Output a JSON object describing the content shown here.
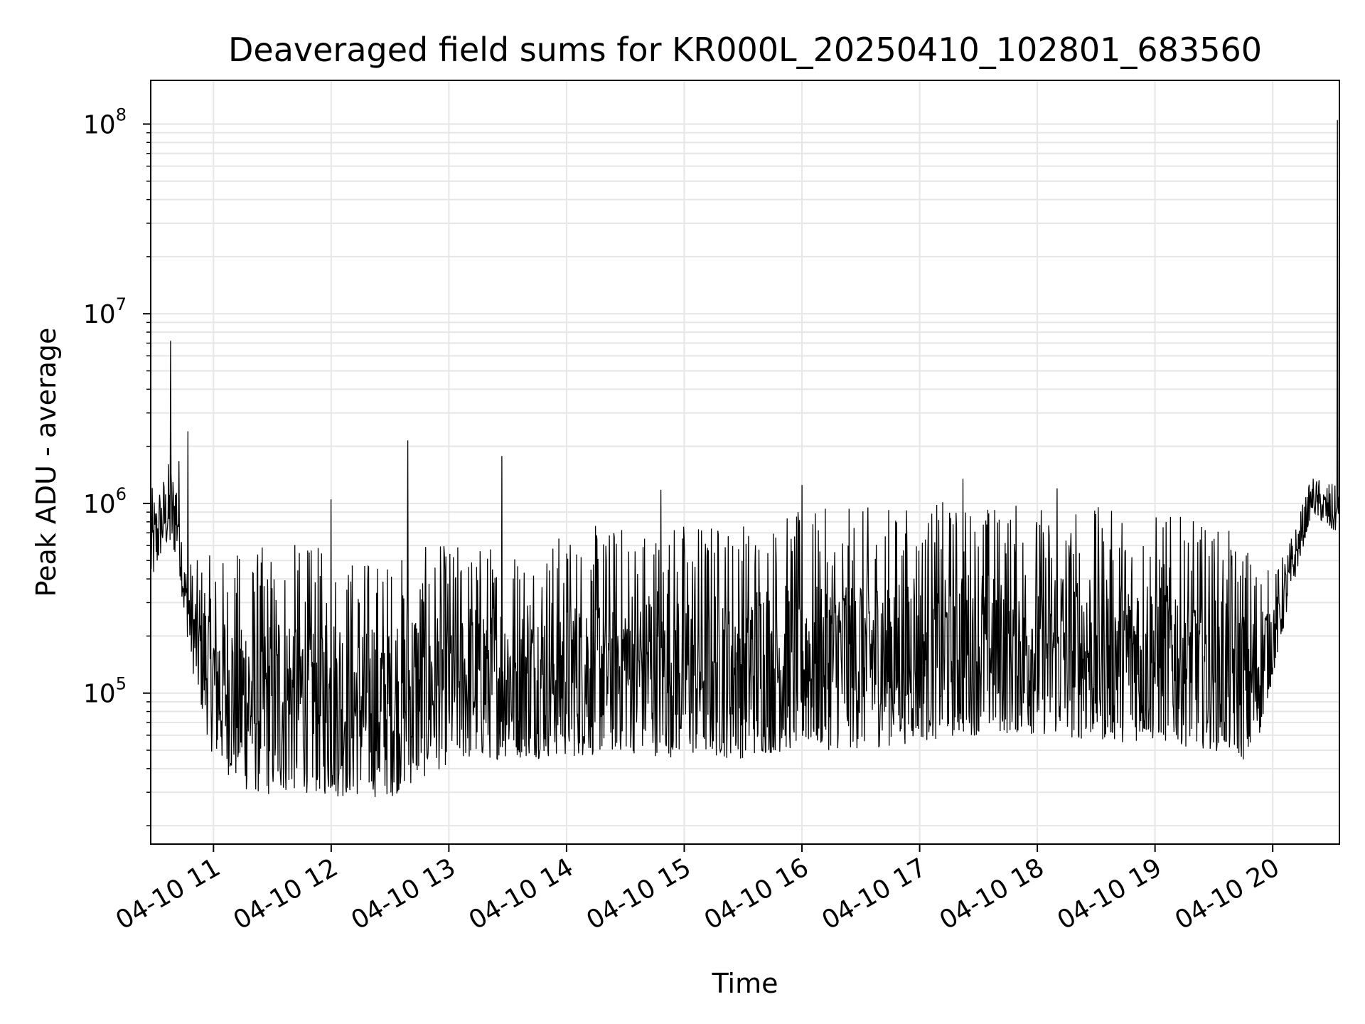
{
  "chart_data": {
    "type": "line",
    "title": "Deaveraged field sums for KR000L_20250410_102801_683560",
    "xlabel": "Time",
    "ylabel": "Peak ADU - average",
    "yscale": "log",
    "ylim": [
      16000,
      170000000
    ],
    "xlim": [
      "2025-04-10 10:28",
      "2025-04-10 20:34"
    ],
    "grid": true,
    "line_color": "#000000",
    "grid_color": "#e6e6e6",
    "x_ticks": [
      {
        "time": "2025-04-10 11:00",
        "label": "04-10 11"
      },
      {
        "time": "2025-04-10 12:00",
        "label": "04-10 12"
      },
      {
        "time": "2025-04-10 13:00",
        "label": "04-10 13"
      },
      {
        "time": "2025-04-10 14:00",
        "label": "04-10 14"
      },
      {
        "time": "2025-04-10 15:00",
        "label": "04-10 15"
      },
      {
        "time": "2025-04-10 16:00",
        "label": "04-10 16"
      },
      {
        "time": "2025-04-10 17:00",
        "label": "04-10 17"
      },
      {
        "time": "2025-04-10 18:00",
        "label": "04-10 18"
      },
      {
        "time": "2025-04-10 19:00",
        "label": "04-10 19"
      },
      {
        "time": "2025-04-10 20:00",
        "label": "04-10 20"
      }
    ],
    "y_ticks": [
      {
        "value": 100000,
        "base": "10",
        "exp": "5"
      },
      {
        "value": 1000000,
        "base": "10",
        "exp": "6"
      },
      {
        "value": 10000000,
        "base": "10",
        "exp": "7"
      },
      {
        "value": 100000000,
        "base": "10",
        "exp": "8"
      }
    ],
    "series": [
      {
        "envelope": [
          {
            "x": "2025-04-10 10:28",
            "low": 350000,
            "high": 1200000
          },
          {
            "x": "2025-04-10 10:35",
            "low": 600000,
            "high": 1500000
          },
          {
            "x": "2025-04-10 10:42",
            "low": 500000,
            "high": 2300000
          },
          {
            "x": "2025-04-10 10:45",
            "low": 250000,
            "high": 600000
          },
          {
            "x": "2025-04-10 10:50",
            "low": 120000,
            "high": 500000
          },
          {
            "x": "2025-04-10 10:55",
            "low": 70000,
            "high": 550000
          },
          {
            "x": "2025-04-10 11:00",
            "low": 45000,
            "high": 550000
          },
          {
            "x": "2025-04-10 11:15",
            "low": 30000,
            "high": 600000
          },
          {
            "x": "2025-04-10 11:30",
            "low": 28000,
            "high": 650000
          },
          {
            "x": "2025-04-10 11:45",
            "low": 30000,
            "high": 650000
          },
          {
            "x": "2025-04-10 12:00",
            "low": 28000,
            "high": 600000
          },
          {
            "x": "2025-04-10 12:30",
            "low": 28000,
            "high": 560000
          },
          {
            "x": "2025-04-10 13:00",
            "low": 42000,
            "high": 650000
          },
          {
            "x": "2025-04-10 13:30",
            "low": 45000,
            "high": 680000
          },
          {
            "x": "2025-04-10 14:00",
            "low": 45000,
            "high": 750000
          },
          {
            "x": "2025-04-10 14:30",
            "low": 48000,
            "high": 850000
          },
          {
            "x": "2025-04-10 15:00",
            "low": 45000,
            "high": 900000
          },
          {
            "x": "2025-04-10 15:30",
            "low": 45000,
            "high": 900000
          },
          {
            "x": "2025-04-10 16:00",
            "low": 50000,
            "high": 950000
          },
          {
            "x": "2025-04-10 16:30",
            "low": 50000,
            "high": 1000000
          },
          {
            "x": "2025-04-10 17:00",
            "low": 55000,
            "high": 1050000
          },
          {
            "x": "2025-04-10 17:30",
            "low": 60000,
            "high": 1100000
          },
          {
            "x": "2025-04-10 18:00",
            "low": 60000,
            "high": 1050000
          },
          {
            "x": "2025-04-10 18:30",
            "low": 55000,
            "high": 1000000
          },
          {
            "x": "2025-04-10 19:00",
            "low": 55000,
            "high": 950000
          },
          {
            "x": "2025-04-10 19:30",
            "low": 50000,
            "high": 800000
          },
          {
            "x": "2025-04-10 19:50",
            "low": 42000,
            "high": 650000
          },
          {
            "x": "2025-04-10 20:00",
            "low": 120000,
            "high": 420000
          },
          {
            "x": "2025-04-10 20:10",
            "low": 350000,
            "high": 700000
          },
          {
            "x": "2025-04-10 20:20",
            "low": 900000,
            "high": 1400000
          },
          {
            "x": "2025-04-10 20:30",
            "low": 700000,
            "high": 1300000
          },
          {
            "x": "2025-04-10 20:34",
            "low": 700000,
            "high": 1200000
          }
        ],
        "spikes": [
          {
            "x": "2025-04-10 10:38",
            "value": 7200000
          },
          {
            "x": "2025-04-10 10:47",
            "value": 2400000
          },
          {
            "x": "2025-04-10 12:00",
            "value": 1050000
          },
          {
            "x": "2025-04-10 12:39",
            "value": 2150000
          },
          {
            "x": "2025-04-10 13:27",
            "value": 1780000
          },
          {
            "x": "2025-04-10 14:48",
            "value": 1180000
          },
          {
            "x": "2025-04-10 16:00",
            "value": 1250000
          },
          {
            "x": "2025-04-10 17:22",
            "value": 1350000
          },
          {
            "x": "2025-04-10 18:10",
            "value": 1200000
          },
          {
            "x": "2025-04-10 20:33",
            "value": 105000000
          }
        ]
      }
    ]
  }
}
